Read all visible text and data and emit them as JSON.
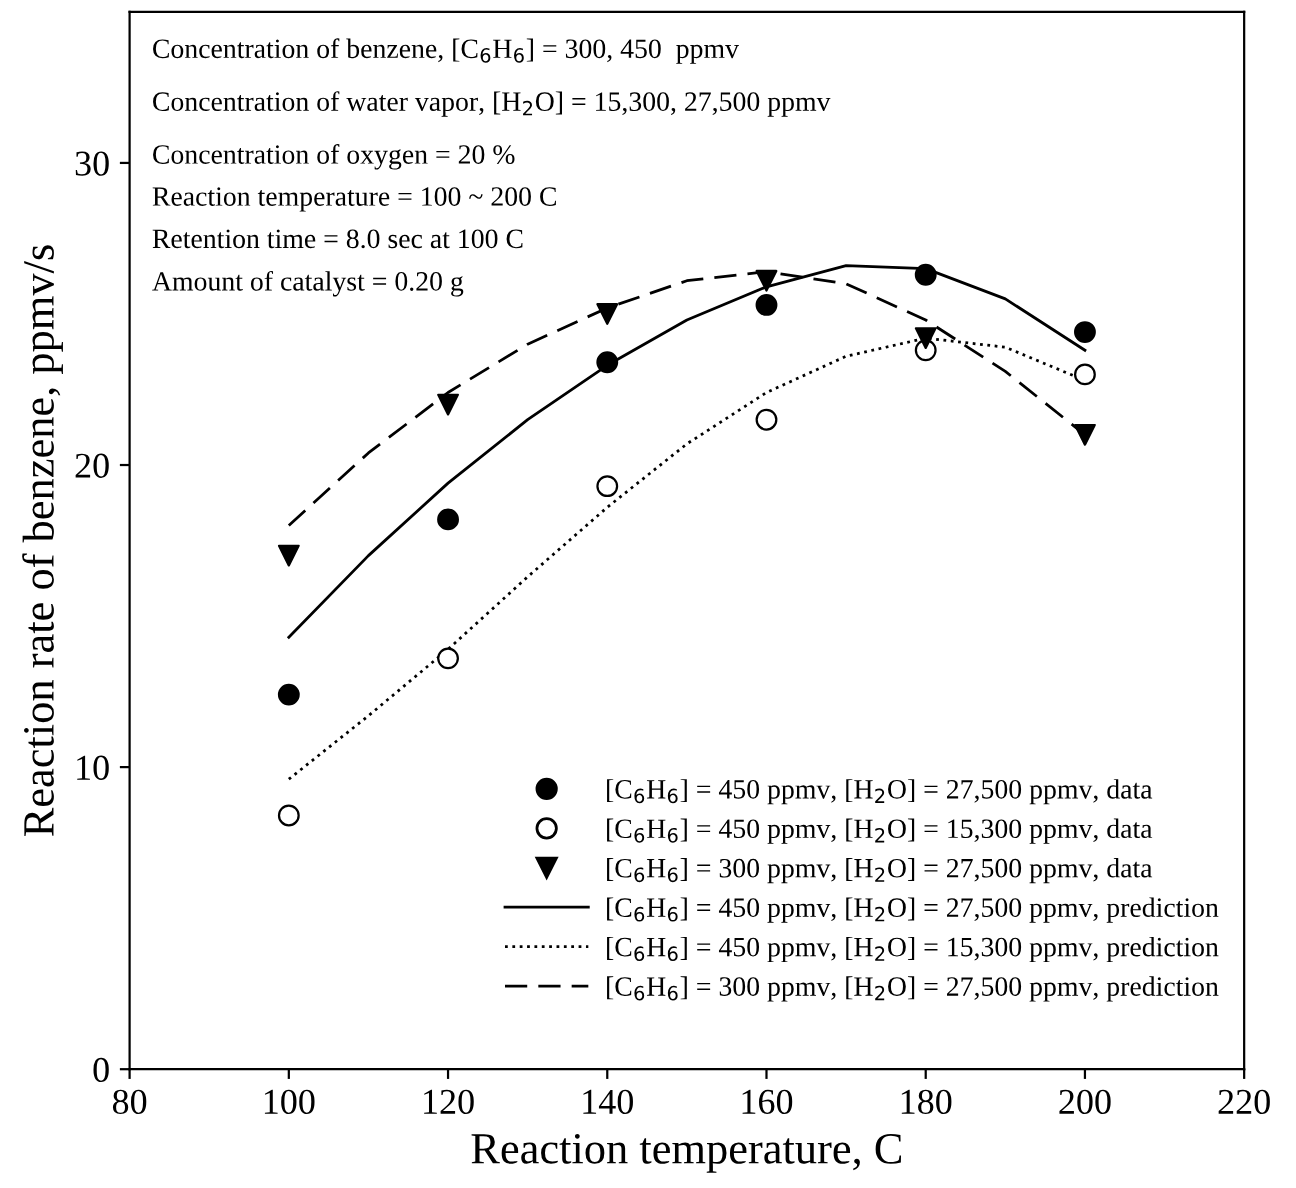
{
  "chart_data": {
    "type": "scatter",
    "xlabel": "Reaction temperature, C",
    "ylabel": "Reaction rate of benzene, ppmv/s",
    "xlim": [
      80,
      220
    ],
    "xticks": [
      80,
      100,
      120,
      140,
      160,
      180,
      200,
      220
    ],
    "ylim": [
      0,
      35
    ],
    "yticks": [
      0,
      10,
      20,
      30
    ],
    "grid": false,
    "legend": "bottom right",
    "annotations": [
      "Concentration of benzene, [C$_{6}$H$_{6}$] = 300, 450  ppmv",
      "Concentration of water vapor, [H$_{2}$O] = 15,300, 27,500 ppmv",
      "Concentration of oxygen = 20 %",
      "Reaction temperature = 100 ~ 200 C",
      "Retention time = 8.0 sec at 100 C",
      "Amount of catalyst = 0.20 g"
    ],
    "series": [
      {
        "name": "[C$_{6}$H$_{6}$] = 450 ppmv, [H$_{2}$O] = 27,500 ppmv, data",
        "marker": "circle",
        "color": "#000000",
        "x": [
          100,
          120,
          140,
          160,
          180,
          200
        ],
        "values": [
          12.4,
          18.2,
          23.4,
          25.3,
          26.3,
          24.4
        ]
      },
      {
        "name": "[C$_{6}$H$_{6}$] = 450 ppmv, [H$_{2}$O] = 15,300 ppmv, data",
        "marker": "circle",
        "color": "#ffffff",
        "x": [
          100,
          120,
          140,
          160,
          180,
          200
        ],
        "values": [
          8.4,
          13.6,
          19.3,
          21.5,
          23.8,
          23.0
        ]
      },
      {
        "name": "[C$_{6}$H$_{6}$] = 300 ppmv, [H$_{2}$O] = 27,500 ppmv, data",
        "marker": "triangle",
        "color": "#000000",
        "x": [
          100,
          120,
          140,
          160,
          180,
          200
        ],
        "values": [
          17.0,
          22.0,
          25.0,
          26.1,
          24.2,
          21.0
        ]
      },
      {
        "name": "[C$_{6}$H$_{6}$] = 450 ppmv, [H$_{2}$O] = 27,500 ppmv, prediction",
        "type": "line",
        "line_style": "solid",
        "color": "#000000",
        "x": [
          100,
          110,
          120,
          130,
          140,
          150,
          160,
          170,
          180,
          190,
          200
        ],
        "values": [
          14.3,
          17.0,
          19.4,
          21.5,
          23.3,
          24.8,
          25.9,
          26.6,
          26.5,
          25.5,
          23.8
        ]
      },
      {
        "name": "[C$_{6}$H$_{6}$] = 450 ppmv, [H$_{2}$O] = 15,300 ppmv, prediction",
        "type": "line",
        "line_style": "dotted",
        "color": "#000000",
        "x": [
          100,
          110,
          120,
          130,
          140,
          150,
          160,
          170,
          180,
          190,
          200
        ],
        "values": [
          9.6,
          11.7,
          13.9,
          16.3,
          18.6,
          20.7,
          22.4,
          23.6,
          24.2,
          23.9,
          22.8
        ]
      },
      {
        "name": "[C$_{6}$H$_{6}$] = 300 ppmv, [H$_{2}$O] = 27,500 ppmv, prediction",
        "type": "line",
        "line_style": "dashed",
        "color": "#000000",
        "x": [
          100,
          110,
          120,
          130,
          140,
          150,
          160,
          170,
          180,
          190,
          200
        ],
        "values": [
          18.0,
          20.4,
          22.4,
          24.0,
          25.2,
          26.1,
          26.4,
          26.0,
          24.8,
          23.1,
          21.0
        ]
      }
    ]
  }
}
